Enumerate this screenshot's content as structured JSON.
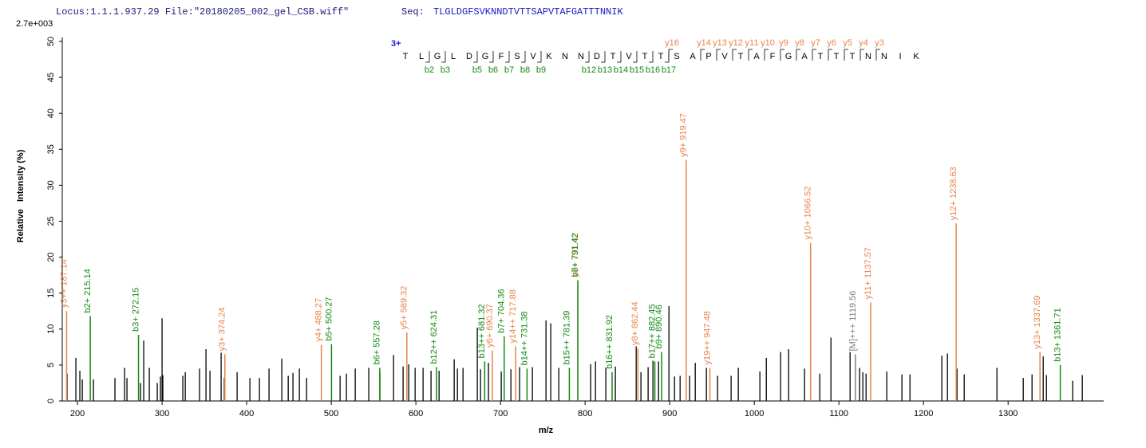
{
  "chart_data": {
    "type": "stem",
    "title": "Locus:1.1.1.937.29 File:\"20180205_002_gel_CSB.wiff\"",
    "seq_label": "Seq:",
    "sequence": "TLGLDGFSVKNNDTVTTSAPVTAFGATTTNNIK",
    "scale_label": "2.7e+003",
    "x_label": "m/z",
    "y_label": "Relative   Intensity (%)",
    "charge_label": "3+",
    "residues": [
      "T",
      "L",
      "G",
      "L",
      "D",
      "G",
      "F",
      "S",
      "V",
      "K",
      "N",
      "N",
      "D",
      "T",
      "V",
      "T",
      "T",
      "S",
      "A",
      "P",
      "V",
      "T",
      "A",
      "F",
      "G",
      "A",
      "T",
      "T",
      "T",
      "N",
      "N",
      "I",
      "K"
    ],
    "b_ion_labels": [
      null,
      "b2",
      "b3",
      null,
      "b5",
      "b6",
      "b7",
      "b8",
      "b9",
      null,
      null,
      "b12",
      "b13",
      "b14",
      "b15",
      "b16",
      "b17",
      null,
      null,
      null,
      null,
      null,
      null,
      null,
      null,
      null,
      null,
      null,
      null,
      null,
      null,
      null
    ],
    "y_ion_labels": [
      null,
      null,
      null,
      null,
      null,
      null,
      null,
      null,
      null,
      null,
      null,
      null,
      null,
      null,
      null,
      null,
      "y16",
      null,
      "y14",
      "y13",
      "y12",
      "y11",
      "y10",
      "y9",
      "y8",
      "y7",
      "y6",
      "y5",
      "y4",
      "y3",
      null,
      null
    ],
    "xlim": [
      182,
      1413
    ],
    "ylim": [
      0,
      50
    ],
    "xticks": [
      200,
      300,
      400,
      500,
      600,
      700,
      800,
      900,
      1000,
      1100,
      1200,
      1300
    ],
    "yticks": [
      0,
      5,
      10,
      15,
      20,
      25,
      30,
      35,
      40,
      45,
      50
    ],
    "peak_color": "#000000",
    "peaks": {
      "x": [
        187.7,
        198.1,
        202.8,
        205.7,
        218.9,
        244.3,
        255.7,
        258.5,
        274.5,
        278.3,
        284.9,
        294.3,
        298.1,
        300.0,
        300.9,
        324.5,
        327.4,
        344.3,
        351.9,
        356.6,
        369.8,
        373.6,
        388.7,
        403.8,
        415.1,
        426.4,
        441.5,
        449.1,
        454.7,
        462.3,
        470.8,
        510.4,
        517.9,
        528.3,
        544.3,
        557.5,
        573.6,
        584.9,
        591.5,
        599.1,
        608.5,
        617.9,
        627.4,
        645.3,
        649.1,
        655.7,
        672.6,
        676.4,
        685.8,
        700.9,
        712.3,
        722.6,
        737.7,
        753.8,
        759.4,
        768.9,
        806.6,
        812.3,
        824.5,
        835.8,
        860.4,
        866.0,
        874.5,
        880.2,
        886.8,
        899.1,
        905.7,
        912.3,
        923.6,
        930.2,
        943.4,
        956.6,
        972.6,
        981.1,
        1006.6,
        1014.2,
        1031.1,
        1040.6,
        1059.4,
        1077.4,
        1090.6,
        1113.2,
        1124.5,
        1128.3,
        1132.1,
        1156.6,
        1174.5,
        1184.0,
        1221.7,
        1228.3,
        1239.6,
        1248.1,
        1286.8,
        1317.9,
        1328.3,
        1341.5,
        1345.3,
        1376.4,
        1387.7
      ],
      "values": [
        3.8,
        6,
        4.2,
        3,
        3,
        3.2,
        4.6,
        3.2,
        2.5,
        8.4,
        4.6,
        2.5,
        3.4,
        11.5,
        3.6,
        3.5,
        4,
        4.5,
        7.2,
        4.2,
        6.7,
        3.2,
        4,
        3.2,
        3.2,
        4.5,
        5.9,
        3.5,
        3.9,
        4.5,
        3.2,
        3.5,
        3.8,
        4.5,
        4.6,
        4,
        6.4,
        4.8,
        5.1,
        4.6,
        4.6,
        4.2,
        4.2,
        5.8,
        4.5,
        4.6,
        10.2,
        4.4,
        5.3,
        4.1,
        4.4,
        4.7,
        4.7,
        11.2,
        10.8,
        4.6,
        5.1,
        5.5,
        4.6,
        4.8,
        7.6,
        4,
        4.7,
        5.6,
        5.5,
        13.2,
        3.4,
        3.5,
        3.5,
        5.3,
        4.6,
        3.5,
        3.5,
        4.6,
        4.1,
        6,
        6.8,
        7.2,
        4.5,
        3.8,
        8.8,
        6.8,
        4.6,
        4,
        3.8,
        4.1,
        3.7,
        3.7,
        6.3,
        6.6,
        4.5,
        3.7,
        4.6,
        3.2,
        3.7,
        6.2,
        3.6,
        2.8,
        3.6
      ]
    },
    "annotations": [
      {
        "label": "y3++ 187.14",
        "x": 187.14,
        "value": 12.5,
        "color": "#e8834a"
      },
      {
        "label": "b2+ 215.14",
        "x": 215.14,
        "value": 11.8,
        "color": "#138a13"
      },
      {
        "label": "b3+ 272.15",
        "x": 272.15,
        "value": 9.2,
        "color": "#138a13"
      },
      {
        "label": "y3+ 374.24",
        "x": 374.24,
        "value": 6.5,
        "color": "#e8834a"
      },
      {
        "label": "y4+ 488.27",
        "x": 488.27,
        "value": 7.8,
        "color": "#e8834a"
      },
      {
        "label": "b5+ 500.27",
        "x": 500.27,
        "value": 7.9,
        "color": "#138a13"
      },
      {
        "label": "b6+ 557.28",
        "x": 557.28,
        "value": 4.6,
        "color": "#138a13"
      },
      {
        "label": "y5+ 589.32",
        "x": 589.32,
        "value": 9.5,
        "color": "#e8834a"
      },
      {
        "label": "b12++ 624.31",
        "x": 624.31,
        "value": 4.7,
        "color": "#138a13"
      },
      {
        "label": "b13++ 681.32",
        "x": 681.32,
        "value": 5.5,
        "color": "#138a13"
      },
      {
        "label": "y6+ 690.37",
        "x": 690.37,
        "value": 7.0,
        "color": "#e8834a"
      },
      {
        "label": "b7+ 704.36",
        "x": 704.36,
        "value": 9.0,
        "color": "#138a13"
      },
      {
        "label": "y14++ 717.88",
        "x": 717.88,
        "value": 7.6,
        "color": "#e8834a"
      },
      {
        "label": "b14++ 731.38",
        "x": 731.38,
        "value": 4.5,
        "color": "#138a13"
      },
      {
        "label": "b15++ 781.39",
        "x": 781.39,
        "value": 4.6,
        "color": "#138a13"
      },
      {
        "label": "y7+ 791.42",
        "x": 791.42,
        "value": 16.8,
        "color": "#e8834a"
      },
      {
        "label": "b8+ 791.42",
        "x": 791.42,
        "value": 16.8,
        "color": "#138a13"
      },
      {
        "label": "b16++ 831.92",
        "x": 831.92,
        "value": 4.0,
        "color": "#138a13"
      },
      {
        "label": "y8+ 862.44",
        "x": 862.44,
        "value": 7.3,
        "color": "#e8834a"
      },
      {
        "label": "b17++ 882.45",
        "x": 882.45,
        "value": 5.5,
        "color": "#138a13"
      },
      {
        "label": "b9+ 890.46",
        "x": 890.46,
        "value": 6.8,
        "color": "#138a13"
      },
      {
        "label": "y9+ 919.47",
        "x": 919.47,
        "value": 33.5,
        "color": "#e8834a"
      },
      {
        "label": "y19++ 947.48",
        "x": 947.48,
        "value": 4.6,
        "color": "#e8834a"
      },
      {
        "label": "y10+ 1066.52",
        "x": 1066.52,
        "value": 22.0,
        "color": "#e8834a"
      },
      {
        "label": "[M]+++ 1119.56",
        "x": 1119.56,
        "value": 6.5,
        "color": "#808080"
      },
      {
        "label": "y11+ 1137.57",
        "x": 1137.57,
        "value": 13.7,
        "color": "#e8834a"
      },
      {
        "label": "y12+ 1238.63",
        "x": 1238.63,
        "value": 24.7,
        "color": "#e8834a"
      },
      {
        "label": "y13+ 1337.69",
        "x": 1337.69,
        "value": 6.8,
        "color": "#e8834a"
      },
      {
        "label": "b13+ 1361.71",
        "x": 1361.71,
        "value": 5.0,
        "color": "#138a13"
      }
    ]
  }
}
